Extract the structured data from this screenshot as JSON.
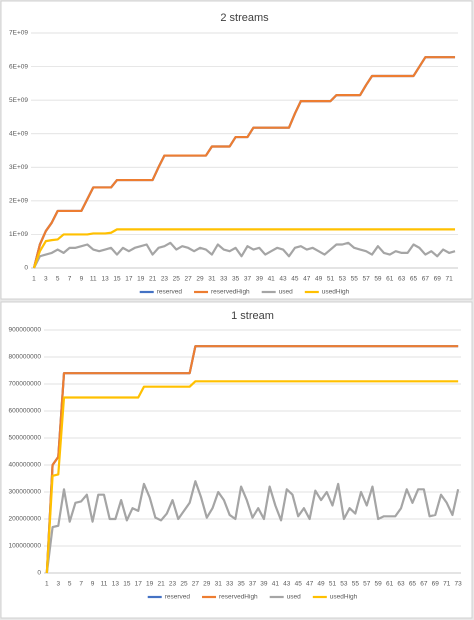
{
  "chart_data": [
    {
      "type": "line",
      "title": "2 streams",
      "legend": "bottom",
      "grid": true,
      "categories": [
        1,
        null,
        3,
        null,
        5,
        null,
        7,
        null,
        9,
        null,
        11,
        null,
        13,
        null,
        15,
        null,
        17,
        null,
        19,
        null,
        21,
        null,
        23,
        null,
        25,
        null,
        27,
        null,
        29,
        null,
        31,
        null,
        33,
        null,
        35,
        null,
        37,
        null,
        39,
        null,
        41,
        null,
        43,
        null,
        45,
        null,
        47,
        null,
        49,
        null,
        51,
        null,
        53,
        null,
        55,
        null,
        57,
        null,
        59,
        null,
        61,
        null,
        63,
        null,
        65,
        null,
        67,
        null,
        69,
        null,
        71,
        null
      ],
      "ylim": [
        0,
        7000000000.0
      ],
      "yticks": [
        0,
        {
          "value": 1000000000.0,
          "label": "1E+09"
        },
        {
          "value": 2000000000.0,
          "label": "2E+09"
        },
        {
          "value": 3000000000.0,
          "label": "3E+09"
        },
        {
          "value": 4000000000.0,
          "label": "4E+09"
        },
        {
          "value": 5000000000.0,
          "label": "5E+09"
        },
        {
          "value": 6000000000.0,
          "label": "6E+09"
        },
        {
          "value": 7000000000.0,
          "label": "7E+09"
        }
      ],
      "series": [
        {
          "name": "reserved",
          "color": "#4472c4",
          "values": [
            0,
            700000000.0,
            1100000000.0,
            1350000000.0,
            1700000000.0,
            1700000000.0,
            1700000000.0,
            1700000000.0,
            1700000000.0,
            2050000000.0,
            2400000000.0,
            2400000000.0,
            2400000000.0,
            2400000000.0,
            2620000000.0,
            2620000000.0,
            2620000000.0,
            2620000000.0,
            2620000000.0,
            2620000000.0,
            2620000000.0,
            3000000000.0,
            3350000000.0,
            3350000000.0,
            3350000000.0,
            3350000000.0,
            3350000000.0,
            3350000000.0,
            3350000000.0,
            3350000000.0,
            3620000000.0,
            3620000000.0,
            3620000000.0,
            3620000000.0,
            3900000000.0,
            3900000000.0,
            3900000000.0,
            4180000000.0,
            4180000000.0,
            4180000000.0,
            4180000000.0,
            4180000000.0,
            4180000000.0,
            4180000000.0,
            4600000000.0,
            4970000000.0,
            4970000000.0,
            4970000000.0,
            4970000000.0,
            4970000000.0,
            4970000000.0,
            5150000000.0,
            5150000000.0,
            5150000000.0,
            5150000000.0,
            5150000000.0,
            5450000000.0,
            5720000000.0,
            5720000000.0,
            5720000000.0,
            5720000000.0,
            5720000000.0,
            5720000000.0,
            5720000000.0,
            5720000000.0,
            6000000000.0,
            6280000000.0,
            6280000000.0,
            6280000000.0,
            6280000000.0,
            6280000000.0,
            6280000000.0
          ]
        },
        {
          "name": "reservedHigh",
          "color": "#ed7d31",
          "values": [
            0,
            700000000.0,
            1100000000.0,
            1350000000.0,
            1700000000.0,
            1700000000.0,
            1700000000.0,
            1700000000.0,
            1700000000.0,
            2050000000.0,
            2400000000.0,
            2400000000.0,
            2400000000.0,
            2400000000.0,
            2620000000.0,
            2620000000.0,
            2620000000.0,
            2620000000.0,
            2620000000.0,
            2620000000.0,
            2620000000.0,
            3000000000.0,
            3350000000.0,
            3350000000.0,
            3350000000.0,
            3350000000.0,
            3350000000.0,
            3350000000.0,
            3350000000.0,
            3350000000.0,
            3620000000.0,
            3620000000.0,
            3620000000.0,
            3620000000.0,
            3900000000.0,
            3900000000.0,
            3900000000.0,
            4180000000.0,
            4180000000.0,
            4180000000.0,
            4180000000.0,
            4180000000.0,
            4180000000.0,
            4180000000.0,
            4600000000.0,
            4970000000.0,
            4970000000.0,
            4970000000.0,
            4970000000.0,
            4970000000.0,
            4970000000.0,
            5150000000.0,
            5150000000.0,
            5150000000.0,
            5150000000.0,
            5150000000.0,
            5450000000.0,
            5720000000.0,
            5720000000.0,
            5720000000.0,
            5720000000.0,
            5720000000.0,
            5720000000.0,
            5720000000.0,
            5720000000.0,
            6000000000.0,
            6280000000.0,
            6280000000.0,
            6280000000.0,
            6280000000.0,
            6280000000.0,
            6280000000.0
          ]
        },
        {
          "name": "used",
          "color": "#a5a5a5",
          "values": [
            0,
            350000000.0,
            400000000.0,
            450000000.0,
            550000000.0,
            450000000.0,
            600000000.0,
            600000000.0,
            650000000.0,
            700000000.0,
            550000000.0,
            500000000.0,
            550000000.0,
            600000000.0,
            400000000.0,
            600000000.0,
            500000000.0,
            600000000.0,
            650000000.0,
            700000000.0,
            400000000.0,
            600000000.0,
            650000000.0,
            750000000.0,
            550000000.0,
            650000000.0,
            600000000.0,
            500000000.0,
            600000000.0,
            550000000.0,
            400000000.0,
            700000000.0,
            550000000.0,
            500000000.0,
            600000000.0,
            350000000.0,
            650000000.0,
            550000000.0,
            600000000.0,
            400000000.0,
            500000000.0,
            600000000.0,
            550000000.0,
            350000000.0,
            600000000.0,
            650000000.0,
            550000000.0,
            600000000.0,
            500000000.0,
            400000000.0,
            550000000.0,
            700000000.0,
            700000000.0,
            750000000.0,
            600000000.0,
            550000000.0,
            500000000.0,
            400000000.0,
            650000000.0,
            450000000.0,
            400000000.0,
            500000000.0,
            450000000.0,
            450000000.0,
            700000000.0,
            600000000.0,
            400000000.0,
            500000000.0,
            350000000.0,
            550000000.0,
            450000000.0,
            500000000.0
          ]
        },
        {
          "name": "usedHigh",
          "color": "#ffc000",
          "values": [
            0,
            500000000.0,
            800000000.0,
            830000000.0,
            850000000.0,
            1000000000.0,
            1000000000.0,
            1000000000.0,
            1000000000.0,
            1000000000.0,
            1030000000.0,
            1030000000.0,
            1030000000.0,
            1050000000.0,
            1150000000.0,
            1150000000.0,
            1150000000.0,
            1150000000.0,
            1150000000.0,
            1150000000.0,
            1150000000.0,
            1150000000.0,
            1150000000.0,
            1150000000.0,
            1150000000.0,
            1150000000.0,
            1150000000.0,
            1150000000.0,
            1150000000.0,
            1150000000.0,
            1150000000.0,
            1150000000.0,
            1150000000.0,
            1150000000.0,
            1150000000.0,
            1150000000.0,
            1150000000.0,
            1150000000.0,
            1150000000.0,
            1150000000.0,
            1150000000.0,
            1150000000.0,
            1150000000.0,
            1150000000.0,
            1150000000.0,
            1150000000.0,
            1150000000.0,
            1150000000.0,
            1150000000.0,
            1150000000.0,
            1150000000.0,
            1150000000.0,
            1150000000.0,
            1150000000.0,
            1150000000.0,
            1150000000.0,
            1150000000.0,
            1150000000.0,
            1150000000.0,
            1150000000.0,
            1150000000.0,
            1150000000.0,
            1150000000.0,
            1150000000.0,
            1150000000.0,
            1150000000.0,
            1150000000.0,
            1150000000.0,
            1150000000.0,
            1150000000.0,
            1150000000.0,
            1150000000.0
          ]
        }
      ]
    },
    {
      "type": "line",
      "title": "1 stream",
      "legend": "bottom",
      "grid": true,
      "categories": [
        1,
        null,
        3,
        null,
        5,
        null,
        7,
        null,
        9,
        null,
        11,
        null,
        13,
        null,
        15,
        null,
        17,
        null,
        19,
        null,
        21,
        null,
        23,
        null,
        25,
        null,
        27,
        null,
        29,
        null,
        31,
        null,
        33,
        null,
        35,
        null,
        37,
        null,
        39,
        null,
        41,
        null,
        43,
        null,
        45,
        null,
        47,
        null,
        49,
        null,
        51,
        null,
        53,
        null,
        55,
        null,
        57,
        null,
        59,
        null,
        61,
        null,
        63,
        null,
        65,
        null,
        67,
        null,
        69,
        null,
        71,
        null,
        73
      ],
      "ylim": [
        0,
        900000000
      ],
      "yticks": [
        0,
        100000000,
        200000000,
        300000000,
        400000000,
        500000000,
        600000000,
        700000000,
        800000000,
        900000000
      ],
      "series": [
        {
          "name": "reserved",
          "color": "#4472c4",
          "values": [
            0,
            400000000.0,
            430000000.0,
            740000000.0,
            740000000.0,
            740000000.0,
            740000000.0,
            740000000.0,
            740000000.0,
            740000000.0,
            740000000.0,
            740000000.0,
            740000000.0,
            740000000.0,
            740000000.0,
            740000000.0,
            740000000.0,
            740000000.0,
            740000000.0,
            740000000.0,
            740000000.0,
            740000000.0,
            740000000.0,
            740000000.0,
            740000000.0,
            740000000.0,
            840000000.0,
            840000000.0,
            840000000.0,
            840000000.0,
            840000000.0,
            840000000.0,
            840000000.0,
            840000000.0,
            840000000.0,
            840000000.0,
            840000000.0,
            840000000.0,
            840000000.0,
            840000000.0,
            840000000.0,
            840000000.0,
            840000000.0,
            840000000.0,
            840000000.0,
            840000000.0,
            840000000.0,
            840000000.0,
            840000000.0,
            840000000.0,
            840000000.0,
            840000000.0,
            840000000.0,
            840000000.0,
            840000000.0,
            840000000.0,
            840000000.0,
            840000000.0,
            840000000.0,
            840000000.0,
            840000000.0,
            840000000.0,
            840000000.0,
            840000000.0,
            840000000.0,
            840000000.0,
            840000000.0,
            840000000.0,
            840000000.0,
            840000000.0,
            840000000.0,
            840000000.0,
            840000000.0
          ]
        },
        {
          "name": "reservedHigh",
          "color": "#ed7d31",
          "values": [
            0,
            400000000.0,
            430000000.0,
            740000000.0,
            740000000.0,
            740000000.0,
            740000000.0,
            740000000.0,
            740000000.0,
            740000000.0,
            740000000.0,
            740000000.0,
            740000000.0,
            740000000.0,
            740000000.0,
            740000000.0,
            740000000.0,
            740000000.0,
            740000000.0,
            740000000.0,
            740000000.0,
            740000000.0,
            740000000.0,
            740000000.0,
            740000000.0,
            740000000.0,
            840000000.0,
            840000000.0,
            840000000.0,
            840000000.0,
            840000000.0,
            840000000.0,
            840000000.0,
            840000000.0,
            840000000.0,
            840000000.0,
            840000000.0,
            840000000.0,
            840000000.0,
            840000000.0,
            840000000.0,
            840000000.0,
            840000000.0,
            840000000.0,
            840000000.0,
            840000000.0,
            840000000.0,
            840000000.0,
            840000000.0,
            840000000.0,
            840000000.0,
            840000000.0,
            840000000.0,
            840000000.0,
            840000000.0,
            840000000.0,
            840000000.0,
            840000000.0,
            840000000.0,
            840000000.0,
            840000000.0,
            840000000.0,
            840000000.0,
            840000000.0,
            840000000.0,
            840000000.0,
            840000000.0,
            840000000.0,
            840000000.0,
            840000000.0,
            840000000.0,
            840000000.0,
            840000000.0
          ]
        },
        {
          "name": "used",
          "color": "#a5a5a5",
          "values": [
            0,
            170000000.0,
            175000000.0,
            310000000.0,
            190000000.0,
            260000000.0,
            265000000.0,
            290000000.0,
            190000000.0,
            290000000.0,
            290000000.0,
            200000000.0,
            200000000.0,
            270000000.0,
            195000000.0,
            240000000.0,
            230000000.0,
            330000000.0,
            280000000.0,
            205000000.0,
            195000000.0,
            220000000.0,
            270000000.0,
            200000000.0,
            230000000.0,
            260000000.0,
            340000000.0,
            280000000.0,
            205000000.0,
            240000000.0,
            300000000.0,
            270000000.0,
            215000000.0,
            200000000.0,
            320000000.0,
            270000000.0,
            205000000.0,
            240000000.0,
            200000000.0,
            320000000.0,
            250000000.0,
            195000000.0,
            310000000.0,
            290000000.0,
            210000000.0,
            240000000.0,
            200000000.0,
            305000000.0,
            270000000.0,
            300000000.0,
            250000000.0,
            330000000.0,
            200000000.0,
            240000000.0,
            220000000.0,
            300000000.0,
            250000000.0,
            320000000.0,
            200000000.0,
            210000000.0,
            210000000.0,
            210000000.0,
            240000000.0,
            310000000.0,
            260000000.0,
            310000000.0,
            310000000.0,
            210000000.0,
            215000000.0,
            290000000.0,
            260000000.0,
            215000000.0,
            310000000.0
          ]
        },
        {
          "name": "usedHigh",
          "color": "#ffc000",
          "values": [
            0,
            360000000.0,
            365000000.0,
            650000000.0,
            650000000.0,
            650000000.0,
            650000000.0,
            650000000.0,
            650000000.0,
            650000000.0,
            650000000.0,
            650000000.0,
            650000000.0,
            650000000.0,
            650000000.0,
            650000000.0,
            650000000.0,
            690000000.0,
            690000000.0,
            690000000.0,
            690000000.0,
            690000000.0,
            690000000.0,
            690000000.0,
            690000000.0,
            690000000.0,
            710000000.0,
            710000000.0,
            710000000.0,
            710000000.0,
            710000000.0,
            710000000.0,
            710000000.0,
            710000000.0,
            710000000.0,
            710000000.0,
            710000000.0,
            710000000.0,
            710000000.0,
            710000000.0,
            710000000.0,
            710000000.0,
            710000000.0,
            710000000.0,
            710000000.0,
            710000000.0,
            710000000.0,
            710000000.0,
            710000000.0,
            710000000.0,
            710000000.0,
            710000000.0,
            710000000.0,
            710000000.0,
            710000000.0,
            710000000.0,
            710000000.0,
            710000000.0,
            710000000.0,
            710000000.0,
            710000000.0,
            710000000.0,
            710000000.0,
            710000000.0,
            710000000.0,
            710000000.0,
            710000000.0,
            710000000.0,
            710000000.0,
            710000000.0,
            710000000.0,
            710000000.0,
            710000000.0
          ]
        }
      ]
    }
  ]
}
